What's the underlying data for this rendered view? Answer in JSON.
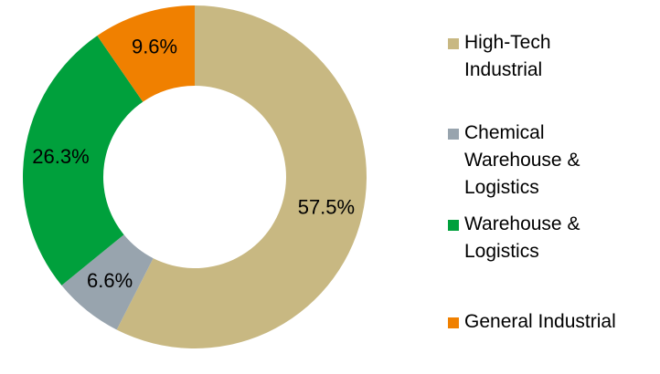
{
  "chart_data": {
    "type": "donut",
    "categories": [
      "High-Tech Industrial",
      "Chemical Warehouse & Logistics",
      "Warehouse & Logistics",
      "General Industrial"
    ],
    "values": [
      57.5,
      6.6,
      26.3,
      9.6
    ],
    "value_labels": [
      "57.5%",
      "6.6%",
      "26.3%",
      "9.6%"
    ],
    "colors": [
      "#c8b882",
      "#98a4ae",
      "#00a03c",
      "#f08000"
    ],
    "legend": "right"
  }
}
